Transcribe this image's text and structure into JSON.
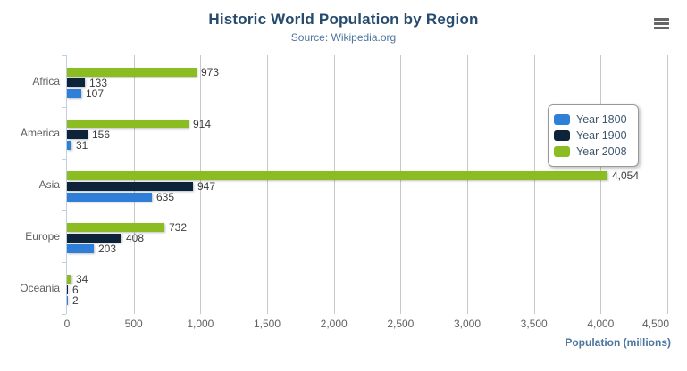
{
  "header": {
    "title": "Historic World Population by Region",
    "subtitle": "Source: Wikipedia.org"
  },
  "context_menu": {
    "icon": "hamburger-icon"
  },
  "chart_data": {
    "type": "bar",
    "orientation": "horizontal",
    "title": "Historic World Population by Region",
    "subtitle": "Source: Wikipedia.org",
    "categories": [
      "Africa",
      "America",
      "Asia",
      "Europe",
      "Oceania"
    ],
    "series": [
      {
        "name": "Year 1800",
        "color": "#2f7ed8",
        "values": [
          107,
          31,
          635,
          203,
          2
        ]
      },
      {
        "name": "Year 1900",
        "color": "#0d233a",
        "values": [
          133,
          156,
          947,
          408,
          6
        ]
      },
      {
        "name": "Year 2008",
        "color": "#8bbc21",
        "values": [
          973,
          914,
          4054,
          732,
          34
        ]
      }
    ],
    "visual_series_order_top_to_bottom": [
      "Year 2008",
      "Year 1900",
      "Year 1800"
    ],
    "xlabel": "Population (millions)",
    "ylabel": "",
    "xlim": [
      0,
      4500
    ],
    "x_ticks": [
      0,
      500,
      1000,
      1500,
      2000,
      2500,
      3000,
      3500,
      4000,
      4500
    ],
    "grid": true,
    "data_labels": true,
    "legend_position": "right-inside",
    "legend_items": [
      "Year 1800",
      "Year 1900",
      "Year 2008"
    ]
  },
  "style_colors": {
    "title": "#274b6d",
    "subtitle": "#4d759e",
    "axis_line": "#c0d0e0",
    "gridline": "#c9c9c9",
    "axis_labels": "#606060",
    "data_labels": "#3c3c3c",
    "axis_title": "#4d759e",
    "legend_border": "#999999",
    "legend_text": "#3e576f",
    "context_icon": "#666666"
  }
}
